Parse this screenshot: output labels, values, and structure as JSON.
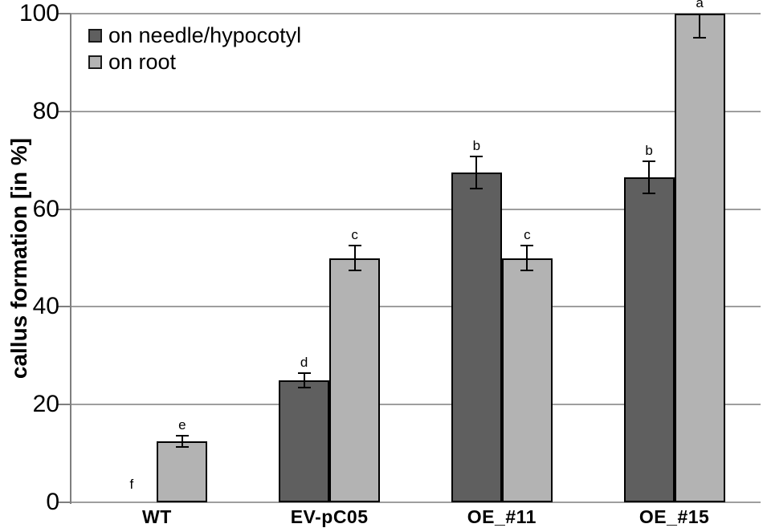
{
  "colors": {
    "background": "#ffffff",
    "grid": "#9e9e9e",
    "axis": "#7f7f7f",
    "error_bar": "#000000",
    "bar_border": "#000000",
    "text": "#000000"
  },
  "chart_data": {
    "type": "bar",
    "title": "",
    "xlabel": "",
    "ylabel": "callus formation [in %]",
    "ylim": [
      0,
      100
    ],
    "yticks": [
      0,
      20,
      40,
      60,
      80,
      100
    ],
    "grid": true,
    "legend_position": "top-left",
    "categories": [
      "WT",
      "EV-pC05",
      "OE_#11",
      "OE_#15"
    ],
    "series": [
      {
        "name": "on needle/hypocotyl",
        "color": "#5f5f5f",
        "values": [
          0,
          25,
          67.5,
          66.5
        ],
        "error_plus": [
          0,
          1.5,
          3.3,
          3.3
        ],
        "error_minus": [
          0,
          1.5,
          3.3,
          3.3
        ],
        "letters": [
          "f",
          "d",
          "b",
          "b"
        ]
      },
      {
        "name": "on root",
        "color": "#b3b3b3",
        "values": [
          12.5,
          50,
          50,
          100
        ],
        "error_plus": [
          1.2,
          2.5,
          2.5,
          0
        ],
        "error_minus": [
          1.2,
          2.5,
          2.5,
          5
        ],
        "letters": [
          "e",
          "c",
          "c",
          "a"
        ]
      }
    ]
  }
}
